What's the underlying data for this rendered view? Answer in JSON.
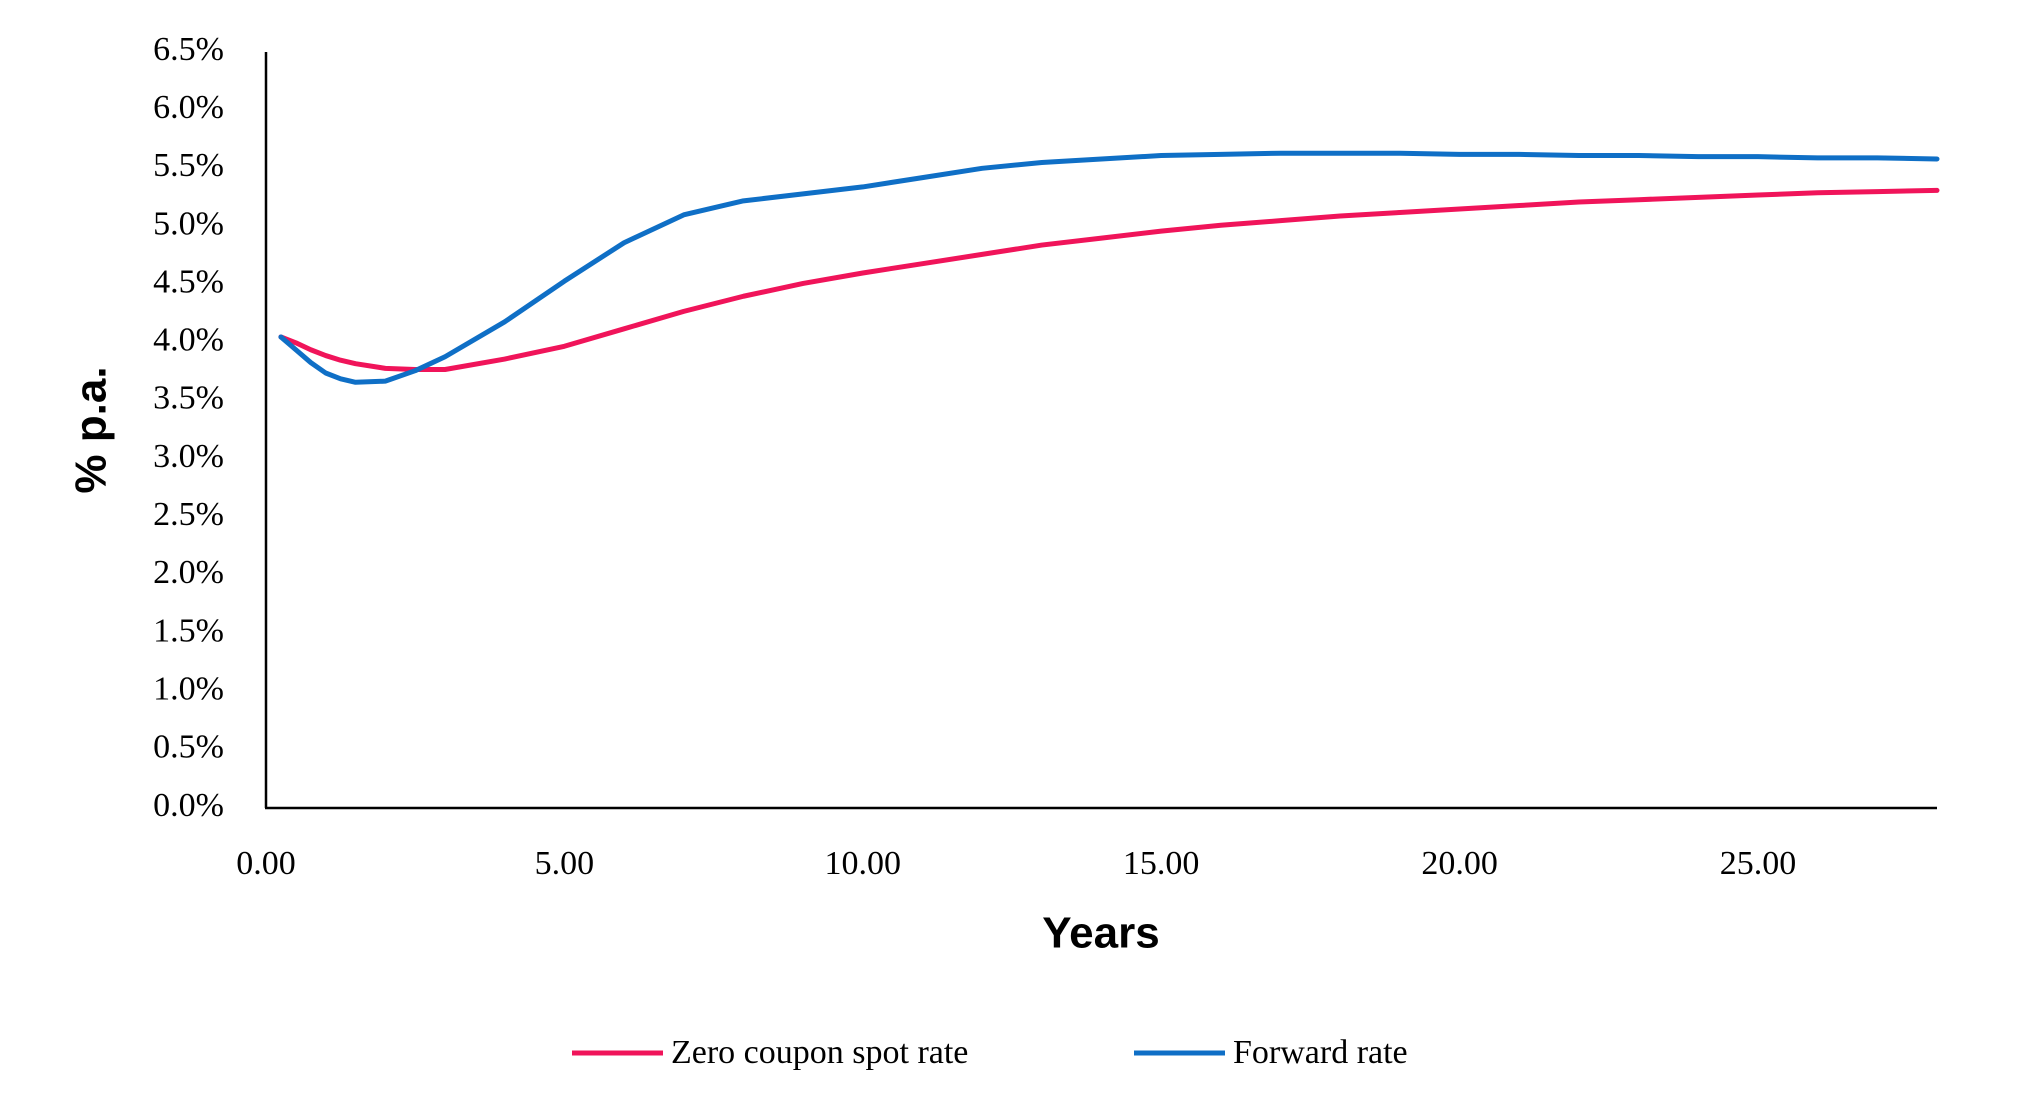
{
  "chart_data": {
    "type": "line",
    "xlabel": "Years",
    "ylabel": "% p.a.",
    "x": [
      0.25,
      0.5,
      0.75,
      1,
      1.25,
      1.5,
      2,
      2.5,
      3,
      4,
      5,
      6,
      7,
      8,
      9,
      10,
      11,
      12,
      13,
      14,
      15,
      16,
      17,
      18,
      19,
      20,
      21,
      22,
      23,
      24,
      25,
      26,
      27,
      28
    ],
    "series": [
      {
        "name": "Zero coupon spot rate",
        "color": "#f0145a",
        "values": [
          4.05,
          4.0,
          3.94,
          3.89,
          3.85,
          3.82,
          3.78,
          3.77,
          3.77,
          3.86,
          3.97,
          4.12,
          4.27,
          4.4,
          4.51,
          4.6,
          4.68,
          4.76,
          4.84,
          4.9,
          4.96,
          5.01,
          5.05,
          5.09,
          5.12,
          5.15,
          5.18,
          5.21,
          5.23,
          5.25,
          5.27,
          5.29,
          5.3,
          5.31
        ]
      },
      {
        "name": "Forward rate",
        "color": "#0f6fc6",
        "values": [
          4.05,
          3.94,
          3.83,
          3.74,
          3.69,
          3.66,
          3.67,
          3.76,
          3.88,
          4.18,
          4.53,
          4.86,
          5.1,
          5.22,
          5.28,
          5.34,
          5.42,
          5.5,
          5.55,
          5.58,
          5.61,
          5.62,
          5.63,
          5.63,
          5.63,
          5.62,
          5.62,
          5.61,
          5.61,
          5.6,
          5.6,
          5.59,
          5.59,
          5.58
        ]
      }
    ],
    "xlim": [
      0,
      28
    ],
    "xticks": [
      {
        "value": 0,
        "label": "0.00"
      },
      {
        "value": 5,
        "label": "5.00"
      },
      {
        "value": 10,
        "label": "10.00"
      },
      {
        "value": 15,
        "label": "15.00"
      },
      {
        "value": 20,
        "label": "20.00"
      },
      {
        "value": 25,
        "label": "25.00"
      }
    ],
    "ylim": [
      0,
      6.5
    ],
    "yticks": [
      {
        "value": 0,
        "label": "0.0%"
      },
      {
        "value": 0.5,
        "label": "0.5%"
      },
      {
        "value": 1,
        "label": "1.0%"
      },
      {
        "value": 1.5,
        "label": "1.5%"
      },
      {
        "value": 2,
        "label": "2.0%"
      },
      {
        "value": 2.5,
        "label": "2.5%"
      },
      {
        "value": 3,
        "label": "3.0%"
      },
      {
        "value": 3.5,
        "label": "3.5%"
      },
      {
        "value": 4,
        "label": "4.0%"
      },
      {
        "value": 4.5,
        "label": "4.5%"
      },
      {
        "value": 5,
        "label": "5.0%"
      },
      {
        "value": 5.5,
        "label": "5.5%"
      },
      {
        "value": 6,
        "label": "6.0%"
      },
      {
        "value": 6.5,
        "label": "6.5%"
      }
    ],
    "grid": false,
    "legend": "bottom"
  }
}
